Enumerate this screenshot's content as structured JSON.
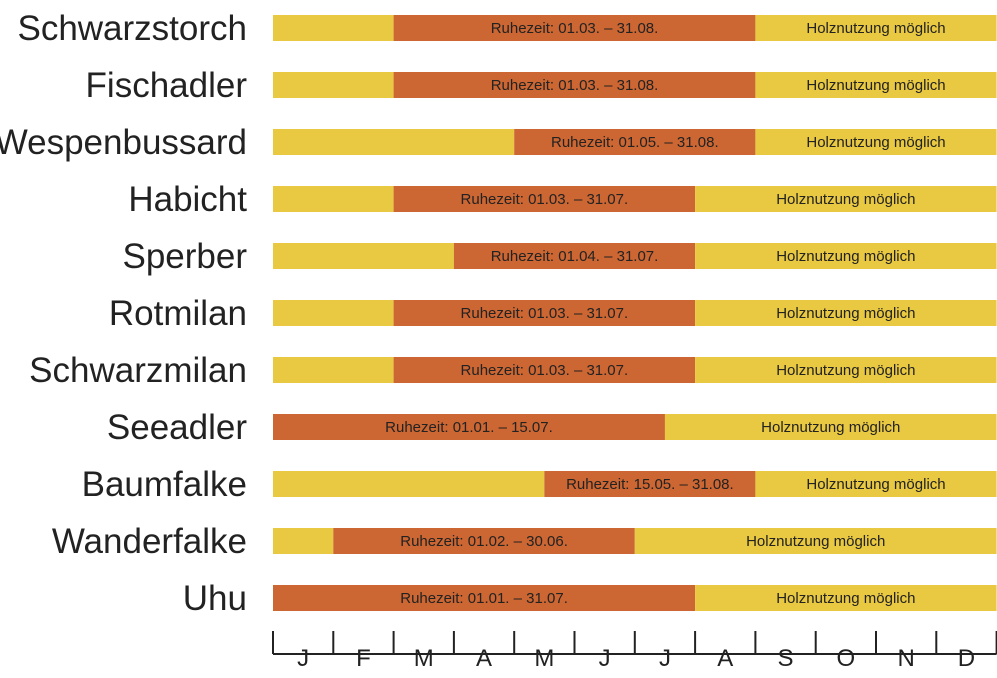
{
  "chart_data": {
    "type": "bar",
    "orientation": "horizontal",
    "stacked": true,
    "x_axis": {
      "tick_labels": [
        "J",
        "F",
        "M",
        "A",
        "M",
        "J",
        "J",
        "A",
        "S",
        "O",
        "N",
        "D"
      ],
      "range_months": [
        0,
        12
      ]
    },
    "colors": {
      "rest_period": "#CC6633",
      "felling_allowed": "#E9C842",
      "label_text": "#222222"
    },
    "felling_label": "Holznutzung möglich",
    "species": [
      {
        "name": "Schwarzstorch",
        "rest_label": "Ruhezeit: 01.03. – 31.08.",
        "rest_start_month": 2,
        "rest_end_month": 8
      },
      {
        "name": "Fischadler",
        "rest_label": "Ruhezeit: 01.03. – 31.08.",
        "rest_start_month": 2,
        "rest_end_month": 8
      },
      {
        "name": "Wespenbussard",
        "rest_label": "Ruhezeit: 01.05. – 31.08.",
        "rest_start_month": 4,
        "rest_end_month": 8
      },
      {
        "name": "Habicht",
        "rest_label": "Ruhezeit: 01.03. – 31.07.",
        "rest_start_month": 2,
        "rest_end_month": 7
      },
      {
        "name": "Sperber",
        "rest_label": "Ruhezeit: 01.04. – 31.07.",
        "rest_start_month": 3,
        "rest_end_month": 7
      },
      {
        "name": "Rotmilan",
        "rest_label": "Ruhezeit: 01.03. – 31.07.",
        "rest_start_month": 2,
        "rest_end_month": 7
      },
      {
        "name": "Schwarzmilan",
        "rest_label": "Ruhezeit: 01.03. – 31.07.",
        "rest_start_month": 2,
        "rest_end_month": 7
      },
      {
        "name": "Seeadler",
        "rest_label": "Ruhezeit: 01.01. – 15.07.",
        "rest_start_month": 0,
        "rest_end_month": 6.5
      },
      {
        "name": "Baumfalke",
        "rest_label": "Ruhezeit: 15.05. – 31.08.",
        "rest_start_month": 4.5,
        "rest_end_month": 8
      },
      {
        "name": "Wanderfalke",
        "rest_label": "Ruhezeit: 01.02. – 30.06.",
        "rest_start_month": 1,
        "rest_end_month": 6
      },
      {
        "name": "Uhu",
        "rest_label": "Ruhezeit: 01.01. – 31.07.",
        "rest_start_month": 0,
        "rest_end_month": 7
      }
    ]
  }
}
